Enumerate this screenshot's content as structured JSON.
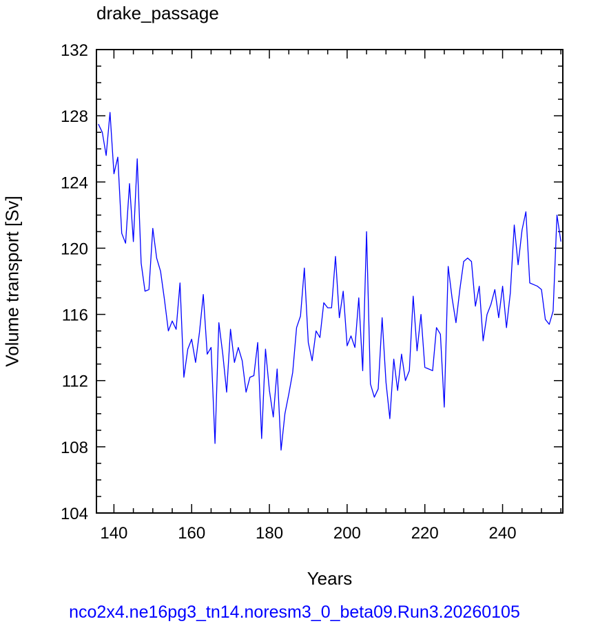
{
  "chart_data": {
    "type": "line",
    "title": "drake_passage",
    "xlabel": "Years",
    "ylabel": "Volume transport [Sv]",
    "footer": "nco2x4.ne16pg3_tn14.noresm3_0_beta09.Run3.20260105",
    "xlim": [
      135.5,
      255.5
    ],
    "ylim": [
      104,
      132
    ],
    "xticks": [
      140,
      160,
      180,
      200,
      220,
      240
    ],
    "yticks": [
      104,
      108,
      112,
      116,
      120,
      124,
      128,
      132
    ],
    "line_color": "#0000ff",
    "series": [
      {
        "x": [
          136,
          137,
          138,
          139,
          140,
          141,
          142,
          143,
          144,
          145,
          146,
          147,
          148,
          149,
          150,
          151,
          152,
          153,
          154,
          155,
          156,
          157,
          158,
          159,
          160,
          161,
          162,
          163,
          164,
          165,
          166,
          167,
          168,
          169,
          170,
          171,
          172,
          173,
          174,
          175,
          176,
          177,
          178,
          179,
          180,
          181,
          182,
          183,
          184,
          185,
          186,
          187,
          188,
          189,
          190,
          191,
          192,
          193,
          194,
          195,
          196,
          197,
          198,
          199,
          200,
          201,
          202,
          203,
          204,
          205,
          206,
          207,
          208,
          209,
          210,
          211,
          212,
          213,
          214,
          215,
          216,
          217,
          218,
          219,
          220,
          221,
          222,
          223,
          224,
          225,
          226,
          227,
          228,
          229,
          230,
          231,
          232,
          233,
          234,
          235,
          236,
          237,
          238,
          239,
          240,
          241,
          242,
          243,
          244,
          245,
          246,
          247,
          248,
          249,
          250,
          251,
          252,
          253,
          254,
          255
        ],
        "values": [
          127.5,
          127.0,
          125.6,
          128.2,
          124.5,
          125.5,
          120.9,
          120.3,
          123.9,
          120.4,
          125.4,
          119.1,
          117.4,
          117.5,
          121.2,
          119.4,
          118.6,
          116.9,
          115.0,
          115.6,
          115.1,
          117.9,
          112.2,
          113.9,
          114.5,
          113.1,
          114.9,
          117.2,
          113.6,
          114.0,
          108.2,
          115.5,
          113.6,
          111.3,
          115.1,
          113.1,
          114.0,
          113.2,
          111.3,
          112.2,
          112.3,
          114.3,
          108.5,
          113.9,
          111.4,
          109.8,
          112.7,
          107.8,
          110.0,
          111.2,
          112.5,
          115.2,
          115.9,
          118.8,
          114.3,
          113.2,
          115.0,
          114.6,
          116.7,
          116.4,
          116.4,
          119.5,
          115.8,
          117.4,
          114.1,
          114.7,
          114.0,
          117.0,
          112.6,
          121.0,
          111.8,
          111.0,
          111.5,
          115.8,
          111.9,
          109.7,
          113.3,
          111.4,
          113.6,
          112.0,
          112.6,
          117.1,
          113.8,
          116.0,
          112.8,
          112.7,
          112.6,
          115.2,
          114.8,
          110.4,
          118.9,
          117.0,
          115.5,
          117.5,
          119.2,
          119.4,
          119.2,
          116.5,
          117.7,
          114.4,
          116.0,
          116.6,
          117.5,
          115.8,
          117.7,
          115.2,
          117.3,
          121.4,
          119.0,
          121.1,
          122.2,
          117.9,
          117.8,
          117.7,
          117.5,
          115.7,
          115.4,
          116.2,
          122.0,
          120.4
        ]
      }
    ]
  }
}
